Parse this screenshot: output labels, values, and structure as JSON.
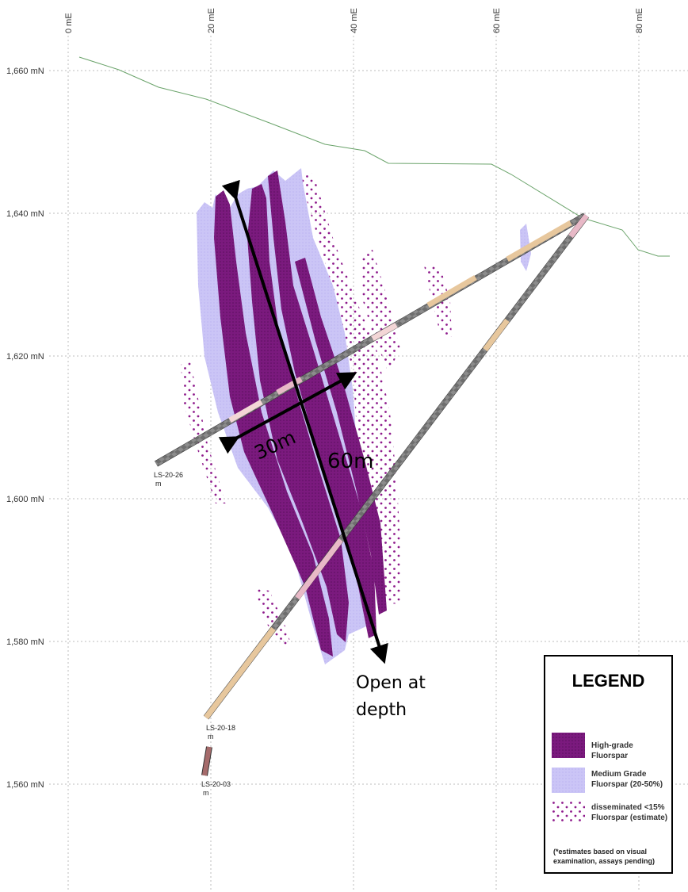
{
  "axes": {
    "x_ticks": [
      {
        "value": 0,
        "label": "0 mE"
      },
      {
        "value": 20,
        "label": "20 mE"
      },
      {
        "value": 40,
        "label": "40 mE"
      },
      {
        "value": 60,
        "label": "60 mE"
      },
      {
        "value": 80,
        "label": "80 mE"
      }
    ],
    "y_ticks": [
      {
        "value": 1660,
        "label": "1,660 mN"
      },
      {
        "value": 1640,
        "label": "1,640 mN"
      },
      {
        "value": 1620,
        "label": "1,620 mN"
      },
      {
        "value": 1600,
        "label": "1,600 mN"
      },
      {
        "value": 1580,
        "label": "1,580 mN"
      },
      {
        "value": 1560,
        "label": "1,560 mN"
      }
    ]
  },
  "holes": {
    "h26": "LS-20-26",
    "h18": "LS-20-18",
    "h03": "LS-20-03",
    "unit": "m"
  },
  "annotations": {
    "width": "30m",
    "length": "60m",
    "open_line1": "Open at",
    "open_line2": "depth"
  },
  "legend": {
    "title": "LEGEND",
    "high_grade": "High-grade Fluorspar",
    "medium_line1": "Medium Grade",
    "medium_line2": "Fluorspar (20-50%)",
    "dissem_line1": "disseminated <15%",
    "dissem_line2": "Fluorspar (estimate)",
    "note_line1": "(*estimates based on visual",
    "note_line2": "examination, assays pending)"
  },
  "colors": {
    "high_grade": "#7b1a7e",
    "medium_grade": "#c9c3f5",
    "disseminated": "#8e1a8c",
    "topography": "#6aa36a",
    "grid": "#bdbdbd"
  }
}
